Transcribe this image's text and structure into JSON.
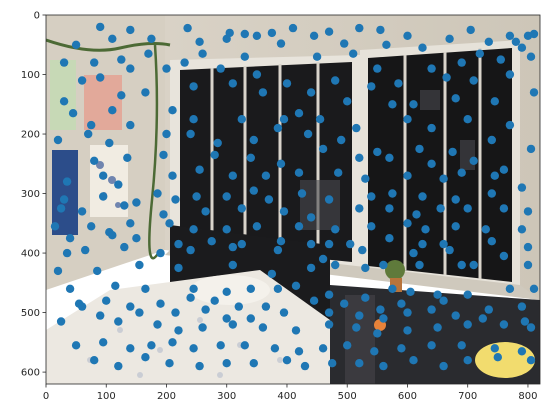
{
  "photo": {
    "description": "bedroom corner photo with windows, wall posters, bed and plants"
  },
  "chart_data": {
    "type": "scatter",
    "xlim": [
      0,
      820
    ],
    "ylim": [
      620,
      0
    ],
    "x_ticks": [
      0,
      100,
      200,
      300,
      400,
      500,
      600,
      700,
      800
    ],
    "y_ticks": [
      0,
      100,
      200,
      300,
      400,
      500,
      600
    ],
    "point_color": "#1f77b4",
    "points": [
      [
        90,
        20
      ],
      [
        140,
        25
      ],
      [
        235,
        22
      ],
      [
        305,
        30
      ],
      [
        330,
        32
      ],
      [
        375,
        30
      ],
      [
        410,
        22
      ],
      [
        470,
        28
      ],
      [
        520,
        22
      ],
      [
        555,
        25
      ],
      [
        600,
        35
      ],
      [
        705,
        25
      ],
      [
        770,
        35
      ],
      [
        800,
        35
      ],
      [
        810,
        32
      ],
      [
        50,
        50
      ],
      [
        110,
        40
      ],
      [
        175,
        40
      ],
      [
        255,
        45
      ],
      [
        300,
        40
      ],
      [
        350,
        35
      ],
      [
        390,
        48
      ],
      [
        445,
        35
      ],
      [
        495,
        48
      ],
      [
        565,
        50
      ],
      [
        625,
        55
      ],
      [
        670,
        40
      ],
      [
        735,
        45
      ],
      [
        780,
        45
      ],
      [
        790,
        55
      ],
      [
        30,
        80
      ],
      [
        80,
        80
      ],
      [
        125,
        75
      ],
      [
        170,
        65
      ],
      [
        260,
        65
      ],
      [
        330,
        70
      ],
      [
        450,
        70
      ],
      [
        510,
        65
      ],
      [
        550,
        90
      ],
      [
        640,
        90
      ],
      [
        690,
        80
      ],
      [
        720,
        65
      ],
      [
        755,
        75
      ],
      [
        805,
        70
      ],
      [
        60,
        110
      ],
      [
        90,
        105
      ],
      [
        140,
        90
      ],
      [
        200,
        90
      ],
      [
        230,
        80
      ],
      [
        290,
        90
      ],
      [
        350,
        100
      ],
      [
        400,
        115
      ],
      [
        480,
        110
      ],
      [
        540,
        120
      ],
      [
        585,
        115
      ],
      [
        665,
        105
      ],
      [
        710,
        110
      ],
      [
        770,
        100
      ],
      [
        30,
        145
      ],
      [
        125,
        135
      ],
      [
        165,
        130
      ],
      [
        245,
        120
      ],
      [
        310,
        115
      ],
      [
        360,
        130
      ],
      [
        440,
        130
      ],
      [
        500,
        145
      ],
      [
        575,
        150
      ],
      [
        610,
        150
      ],
      [
        680,
        140
      ],
      [
        745,
        145
      ],
      [
        810,
        130
      ],
      [
        45,
        165
      ],
      [
        75,
        185
      ],
      [
        110,
        160
      ],
      [
        140,
        185
      ],
      [
        210,
        160
      ],
      [
        245,
        175
      ],
      [
        325,
        175
      ],
      [
        395,
        175
      ],
      [
        420,
        165
      ],
      [
        455,
        175
      ],
      [
        515,
        190
      ],
      [
        600,
        175
      ],
      [
        640,
        190
      ],
      [
        700,
        175
      ],
      [
        770,
        185
      ],
      [
        20,
        210
      ],
      [
        70,
        200
      ],
      [
        105,
        215
      ],
      [
        200,
        200
      ],
      [
        240,
        200
      ],
      [
        285,
        215
      ],
      [
        345,
        210
      ],
      [
        385,
        190
      ],
      [
        435,
        200
      ],
      [
        490,
        210
      ],
      [
        550,
        230
      ],
      [
        620,
        225
      ],
      [
        675,
        230
      ],
      [
        740,
        210
      ],
      [
        805,
        225
      ],
      [
        80,
        245
      ],
      [
        135,
        240
      ],
      [
        195,
        235
      ],
      [
        280,
        235
      ],
      [
        340,
        240
      ],
      [
        390,
        250
      ],
      [
        460,
        225
      ],
      [
        520,
        240
      ],
      [
        570,
        240
      ],
      [
        640,
        250
      ],
      [
        710,
        245
      ],
      [
        760,
        260
      ],
      [
        35,
        280
      ],
      [
        95,
        270
      ],
      [
        120,
        285
      ],
      [
        210,
        270
      ],
      [
        255,
        260
      ],
      [
        310,
        270
      ],
      [
        365,
        270
      ],
      [
        420,
        265
      ],
      [
        485,
        265
      ],
      [
        530,
        275
      ],
      [
        600,
        270
      ],
      [
        660,
        275
      ],
      [
        690,
        265
      ],
      [
        745,
        270
      ],
      [
        790,
        290
      ],
      [
        30,
        310
      ],
      [
        95,
        305
      ],
      [
        150,
        315
      ],
      [
        185,
        300
      ],
      [
        250,
        305
      ],
      [
        300,
        305
      ],
      [
        345,
        295
      ],
      [
        370,
        310
      ],
      [
        425,
        300
      ],
      [
        470,
        310
      ],
      [
        540,
        305
      ],
      [
        575,
        300
      ],
      [
        625,
        305
      ],
      [
        680,
        310
      ],
      [
        740,
        300
      ],
      [
        25,
        325
      ],
      [
        60,
        330
      ],
      [
        130,
        320
      ],
      [
        195,
        335
      ],
      [
        215,
        310
      ],
      [
        265,
        330
      ],
      [
        325,
        325
      ],
      [
        395,
        330
      ],
      [
        440,
        340
      ],
      [
        520,
        325
      ],
      [
        570,
        325
      ],
      [
        615,
        335
      ],
      [
        655,
        325
      ],
      [
        700,
        325
      ],
      [
        760,
        325
      ],
      [
        800,
        330
      ],
      [
        15,
        355
      ],
      [
        75,
        355
      ],
      [
        105,
        365
      ],
      [
        140,
        350
      ],
      [
        205,
        350
      ],
      [
        245,
        360
      ],
      [
        300,
        360
      ],
      [
        350,
        355
      ],
      [
        420,
        355
      ],
      [
        480,
        360
      ],
      [
        540,
        355
      ],
      [
        600,
        350
      ],
      [
        630,
        360
      ],
      [
        680,
        355
      ],
      [
        730,
        360
      ],
      [
        790,
        360
      ],
      [
        40,
        375
      ],
      [
        110,
        370
      ],
      [
        150,
        375
      ],
      [
        220,
        385
      ],
      [
        275,
        380
      ],
      [
        325,
        385
      ],
      [
        390,
        380
      ],
      [
        440,
        385
      ],
      [
        470,
        385
      ],
      [
        505,
        385
      ],
      [
        570,
        375
      ],
      [
        625,
        385
      ],
      [
        660,
        385
      ],
      [
        740,
        380
      ],
      [
        800,
        390
      ],
      [
        35,
        400
      ],
      [
        65,
        395
      ],
      [
        130,
        390
      ],
      [
        190,
        400
      ],
      [
        240,
        395
      ],
      [
        310,
        390
      ],
      [
        385,
        395
      ],
      [
        460,
        410
      ],
      [
        525,
        395
      ],
      [
        610,
        400
      ],
      [
        670,
        395
      ],
      [
        760,
        405
      ],
      [
        20,
        430
      ],
      [
        85,
        430
      ],
      [
        155,
        420
      ],
      [
        220,
        425
      ],
      [
        310,
        420
      ],
      [
        375,
        435
      ],
      [
        440,
        425
      ],
      [
        480,
        420
      ],
      [
        530,
        425
      ],
      [
        560,
        420
      ],
      [
        620,
        420
      ],
      [
        690,
        420
      ],
      [
        710,
        420
      ],
      [
        800,
        420
      ],
      [
        40,
        460
      ],
      [
        115,
        455
      ],
      [
        165,
        460
      ],
      [
        245,
        460
      ],
      [
        300,
        465
      ],
      [
        340,
        460
      ],
      [
        385,
        460
      ],
      [
        415,
        455
      ],
      [
        470,
        470
      ],
      [
        530,
        475
      ],
      [
        575,
        460
      ],
      [
        605,
        465
      ],
      [
        650,
        470
      ],
      [
        700,
        470
      ],
      [
        770,
        460
      ],
      [
        810,
        460
      ],
      [
        55,
        485
      ],
      [
        100,
        480
      ],
      [
        140,
        490
      ],
      [
        190,
        485
      ],
      [
        240,
        475
      ],
      [
        280,
        480
      ],
      [
        320,
        490
      ],
      [
        365,
        490
      ],
      [
        445,
        480
      ],
      [
        495,
        485
      ],
      [
        555,
        495
      ],
      [
        590,
        485
      ],
      [
        640,
        495
      ],
      [
        660,
        480
      ],
      [
        735,
        495
      ],
      [
        790,
        490
      ],
      [
        60,
        490
      ],
      [
        90,
        505
      ],
      [
        155,
        500
      ],
      [
        215,
        500
      ],
      [
        265,
        495
      ],
      [
        300,
        510
      ],
      [
        340,
        510
      ],
      [
        395,
        500
      ],
      [
        470,
        500
      ],
      [
        520,
        505
      ],
      [
        560,
        510
      ],
      [
        600,
        500
      ],
      [
        680,
        505
      ],
      [
        725,
        510
      ],
      [
        795,
        515
      ],
      [
        25,
        515
      ],
      [
        120,
        515
      ],
      [
        185,
        520
      ],
      [
        220,
        530
      ],
      [
        260,
        525
      ],
      [
        310,
        520
      ],
      [
        360,
        525
      ],
      [
        415,
        530
      ],
      [
        470,
        520
      ],
      [
        515,
        525
      ],
      [
        550,
        535
      ],
      [
        600,
        530
      ],
      [
        650,
        525
      ],
      [
        700,
        520
      ],
      [
        760,
        520
      ],
      [
        805,
        525
      ],
      [
        50,
        555
      ],
      [
        95,
        550
      ],
      [
        140,
        560
      ],
      [
        175,
        555
      ],
      [
        210,
        550
      ],
      [
        245,
        560
      ],
      [
        290,
        555
      ],
      [
        330,
        555
      ],
      [
        380,
        560
      ],
      [
        420,
        565
      ],
      [
        460,
        560
      ],
      [
        500,
        555
      ],
      [
        545,
        565
      ],
      [
        590,
        560
      ],
      [
        640,
        555
      ],
      [
        690,
        555
      ],
      [
        745,
        560
      ],
      [
        790,
        565
      ],
      [
        80,
        580
      ],
      [
        120,
        590
      ],
      [
        165,
        575
      ],
      [
        205,
        585
      ],
      [
        255,
        590
      ],
      [
        300,
        585
      ],
      [
        345,
        585
      ],
      [
        400,
        580
      ],
      [
        430,
        590
      ],
      [
        475,
        585
      ],
      [
        520,
        585
      ],
      [
        560,
        590
      ],
      [
        610,
        580
      ],
      [
        660,
        590
      ],
      [
        700,
        580
      ],
      [
        750,
        575
      ],
      [
        805,
        580
      ]
    ]
  }
}
